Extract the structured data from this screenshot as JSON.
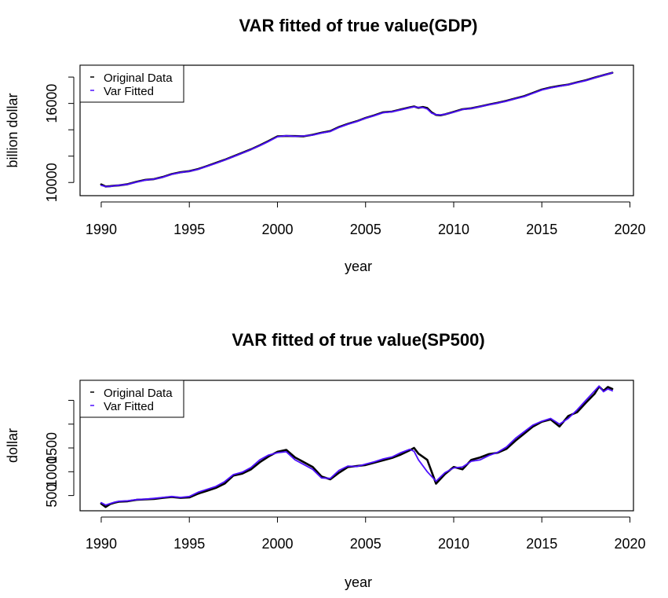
{
  "chart_data": [
    {
      "type": "line",
      "title": "VAR fitted of true value(GDP)",
      "xlabel": "year",
      "ylabel": "billion dollar",
      "xlim": [
        1988.8,
        2020.2
      ],
      "ylim": [
        9000,
        18900
      ],
      "x_ticks": [
        1990,
        1995,
        2000,
        2005,
        2010,
        2015,
        2020
      ],
      "x_tick_labels": [
        "1990",
        "1995",
        "2000",
        "2005",
        "2010",
        "2015",
        "2020"
      ],
      "y_ticks": [
        10000,
        12000,
        14000,
        16000,
        18000
      ],
      "y_tick_labels": [
        "10000",
        "",
        "",
        "16000",
        ""
      ],
      "legend": {
        "position": "top-left",
        "entries": [
          "Original Data",
          "Var Fitted"
        ]
      },
      "series": [
        {
          "name": "Original Data",
          "color": "#000000",
          "x": [
            1990,
            1990.25,
            1990.5,
            1990.75,
            1991,
            1991.5,
            1992,
            1992.5,
            1993,
            1993.5,
            1994,
            1994.5,
            1995,
            1995.5,
            1996,
            1996.5,
            1997,
            1997.5,
            1998,
            1998.5,
            1999,
            1999.5,
            2000,
            2000.5,
            2001,
            2001.5,
            2002,
            2002.5,
            2003,
            2003.5,
            2004,
            2004.5,
            2005,
            2005.5,
            2006,
            2006.5,
            2007,
            2007.5,
            2007.75,
            2008,
            2008.25,
            2008.5,
            2008.75,
            2009,
            2009.25,
            2009.5,
            2009.75,
            2010,
            2010.5,
            2011,
            2011.5,
            2012,
            2012.5,
            2013,
            2013.5,
            2014,
            2014.5,
            2015,
            2015.5,
            2016,
            2016.5,
            2017,
            2017.5,
            2018,
            2018.5,
            2019
          ],
          "y": [
            9850,
            9700,
            9720,
            9760,
            9780,
            9870,
            10050,
            10200,
            10260,
            10420,
            10640,
            10780,
            10860,
            11020,
            11250,
            11480,
            11720,
            11980,
            12250,
            12520,
            12820,
            13150,
            13500,
            13530,
            13520,
            13510,
            13620,
            13780,
            13900,
            14210,
            14450,
            14650,
            14900,
            15100,
            15330,
            15380,
            15540,
            15700,
            15770,
            15670,
            15730,
            15650,
            15320,
            15130,
            15100,
            15170,
            15260,
            15360,
            15560,
            15630,
            15770,
            15920,
            16050,
            16200,
            16380,
            16550,
            16800,
            17050,
            17210,
            17330,
            17430,
            17600,
            17760,
            17960,
            18150,
            18330
          ]
        },
        {
          "name": "Var Fitted",
          "color": "#4d10ff",
          "x": [
            1990,
            1990.25,
            1990.5,
            1990.75,
            1991,
            1991.5,
            1992,
            1992.5,
            1993,
            1993.5,
            1994,
            1994.5,
            1995,
            1995.5,
            1996,
            1996.5,
            1997,
            1997.5,
            1998,
            1998.5,
            1999,
            1999.5,
            2000,
            2000.5,
            2001,
            2001.5,
            2002,
            2002.5,
            2003,
            2003.5,
            2004,
            2004.5,
            2005,
            2005.5,
            2006,
            2006.5,
            2007,
            2007.5,
            2007.75,
            2008,
            2008.25,
            2008.5,
            2008.75,
            2009,
            2009.25,
            2009.5,
            2009.75,
            2010,
            2010.5,
            2011,
            2011.5,
            2012,
            2012.5,
            2013,
            2013.5,
            2014,
            2014.5,
            2015,
            2015.5,
            2016,
            2016.5,
            2017,
            2017.5,
            2018,
            2018.5,
            2019
          ],
          "y": [
            9780,
            9690,
            9700,
            9750,
            9790,
            9860,
            10030,
            10180,
            10250,
            10400,
            10620,
            10760,
            10850,
            11000,
            11230,
            11460,
            11700,
            11960,
            12230,
            12500,
            12800,
            13120,
            13470,
            13550,
            13500,
            13530,
            13600,
            13760,
            13880,
            14180,
            14430,
            14630,
            14880,
            15080,
            15300,
            15370,
            15520,
            15680,
            15740,
            15700,
            15690,
            15580,
            15260,
            15150,
            15120,
            15180,
            15250,
            15340,
            15540,
            15620,
            15750,
            15900,
            16030,
            16180,
            16360,
            16520,
            16770,
            17020,
            17190,
            17310,
            17420,
            17580,
            17740,
            17940,
            18140,
            18320
          ]
        }
      ]
    },
    {
      "type": "line",
      "title": "VAR fitted of true value(SP500)",
      "xlabel": "year",
      "ylabel": "dollar",
      "xlim": [
        1988.8,
        2020.2
      ],
      "ylim": [
        180,
        2920
      ],
      "x_ticks": [
        1990,
        1995,
        2000,
        2005,
        2010,
        2015,
        2020
      ],
      "x_tick_labels": [
        "1990",
        "1995",
        "2000",
        "2005",
        "2010",
        "2015",
        "2020"
      ],
      "y_ticks": [
        500,
        1000,
        1500,
        2000,
        2500
      ],
      "y_tick_labels": [
        "500",
        "1000",
        "1500",
        "",
        ""
      ],
      "legend": {
        "position": "top-left",
        "entries": [
          "Original Data",
          "Var Fitted"
        ]
      },
      "series": [
        {
          "name": "Original Data",
          "color": "#000000",
          "x": [
            1990,
            1990.25,
            1990.5,
            1990.75,
            1991,
            1991.5,
            1992,
            1992.5,
            1993,
            1993.5,
            1994,
            1994.5,
            1995,
            1995.5,
            1996,
            1996.5,
            1997,
            1997.5,
            1998,
            1998.5,
            1999,
            1999.5,
            2000,
            2000.5,
            2001,
            2001.5,
            2002,
            2002.5,
            2003,
            2003.5,
            2004,
            2004.5,
            2005,
            2005.5,
            2006,
            2006.5,
            2007,
            2007.5,
            2007.75,
            2008,
            2008.5,
            2009,
            2009.5,
            2010,
            2010.5,
            2011,
            2011.5,
            2012,
            2012.5,
            2013,
            2013.5,
            2014,
            2014.5,
            2015,
            2015.5,
            2016,
            2016.5,
            2017,
            2017.5,
            2018,
            2018.25,
            2018.5,
            2018.75,
            2019
          ],
          "y": [
            330,
            260,
            320,
            350,
            370,
            380,
            410,
            420,
            430,
            450,
            470,
            450,
            460,
            540,
            600,
            660,
            750,
            920,
            960,
            1050,
            1200,
            1320,
            1420,
            1460,
            1300,
            1200,
            1100,
            900,
            840,
            980,
            1100,
            1120,
            1140,
            1190,
            1240,
            1290,
            1360,
            1450,
            1500,
            1380,
            1250,
            750,
            950,
            1100,
            1050,
            1250,
            1300,
            1370,
            1400,
            1480,
            1650,
            1800,
            1950,
            2050,
            2100,
            1950,
            2170,
            2250,
            2450,
            2640,
            2790,
            2700,
            2780,
            2740
          ]
        },
        {
          "name": "Var Fitted",
          "color": "#4d10ff",
          "x": [
            1990,
            1990.25,
            1990.5,
            1990.75,
            1991,
            1991.5,
            1992,
            1992.5,
            1993,
            1993.5,
            1994,
            1994.5,
            1995,
            1995.5,
            1996,
            1996.5,
            1997,
            1997.5,
            1998,
            1998.5,
            1999,
            1999.5,
            2000,
            2000.5,
            2001,
            2001.5,
            2002,
            2002.5,
            2003,
            2003.5,
            2004,
            2004.5,
            2005,
            2005.5,
            2006,
            2006.5,
            2007,
            2007.5,
            2007.75,
            2008,
            2008.5,
            2009,
            2009.5,
            2010,
            2010.5,
            2011,
            2011.5,
            2012,
            2012.5,
            2013,
            2013.5,
            2014,
            2014.5,
            2015,
            2015.5,
            2016,
            2016.5,
            2017,
            2017.5,
            2018,
            2018.25,
            2018.5,
            2018.75,
            2019
          ],
          "y": [
            350,
            300,
            330,
            360,
            380,
            390,
            415,
            425,
            440,
            460,
            480,
            460,
            480,
            570,
            630,
            690,
            790,
            940,
            990,
            1090,
            1250,
            1350,
            1400,
            1420,
            1250,
            1150,
            1050,
            870,
            860,
            1030,
            1120,
            1110,
            1160,
            1210,
            1270,
            1310,
            1400,
            1470,
            1430,
            1250,
            1000,
            800,
            980,
            1080,
            1100,
            1220,
            1250,
            1340,
            1410,
            1520,
            1700,
            1840,
            1980,
            2060,
            2120,
            2000,
            2120,
            2300,
            2500,
            2700,
            2800,
            2680,
            2740,
            2700
          ]
        }
      ]
    }
  ]
}
